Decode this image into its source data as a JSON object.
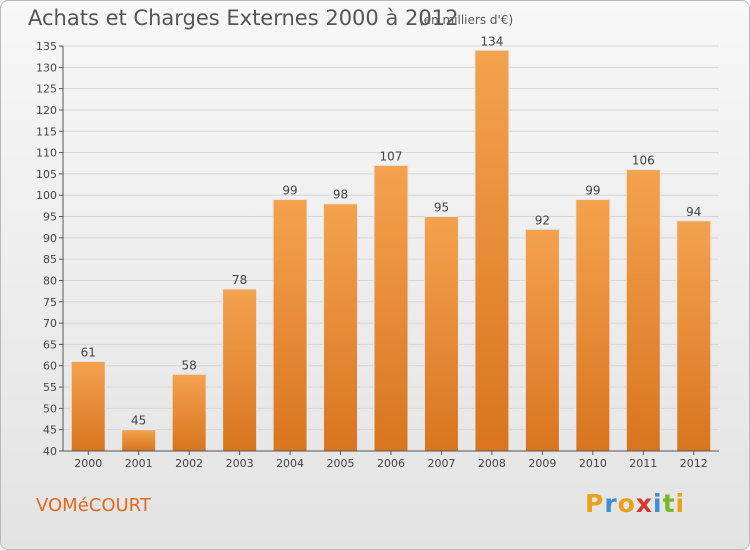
{
  "header": {
    "title": "Achats et Charges Externes 2000 à 2012",
    "subtitle": "(en milliers d'€)"
  },
  "footer": {
    "town": "VOMéCOURT",
    "logo": "Proxiti",
    "logo_colors": [
      "#e9a11c",
      "#3c8fd1",
      "#e9a11c",
      "#d6382e",
      "#3c8fd1",
      "#77b82a",
      "#e9a11c"
    ]
  },
  "colors": {
    "bar_top": "#f4a24f",
    "bar_bottom": "#d9751f",
    "grid": "#d6d6d6",
    "axis": "#555555"
  },
  "chart_data": {
    "type": "bar",
    "categories": [
      "2000",
      "2001",
      "2002",
      "2003",
      "2004",
      "2005",
      "2006",
      "2007",
      "2008",
      "2009",
      "2010",
      "2011",
      "2012"
    ],
    "values": [
      61,
      45,
      58,
      78,
      99,
      98,
      107,
      95,
      134,
      92,
      99,
      106,
      94
    ],
    "title": "Achats et Charges Externes 2000 à 2012",
    "subtitle": "(en milliers d'€)",
    "xlabel": "",
    "ylabel": "",
    "ylim": [
      40,
      135
    ],
    "ytick_step": 5,
    "grid": true,
    "legend": "none"
  }
}
